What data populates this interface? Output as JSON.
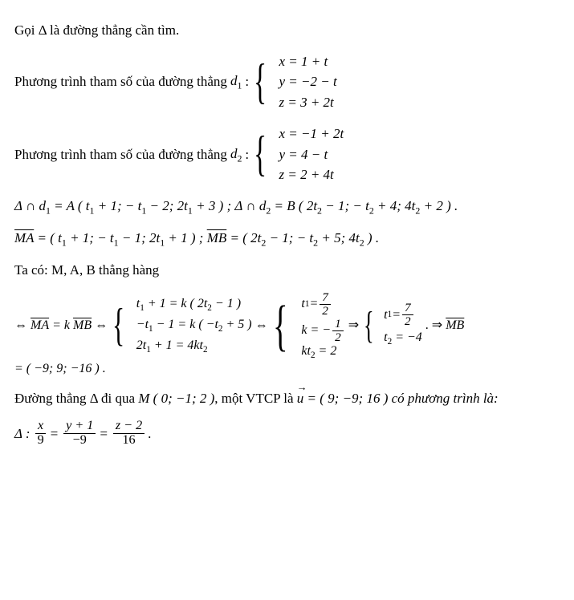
{
  "p": {
    "intro": "Gọi Δ là đường thẳng cần tìm.",
    "param_prefix": "Phương trình tham số của đường thẳng ",
    "d1": "d",
    "d1sub": "1",
    "colon": " : ",
    "d1_r1": "x = 1 + t",
    "d1_r2": "y = −2 − t",
    "d1_r3": "z = 3 + 2t",
    "d2": "d",
    "d2sub": "2",
    "d2_r1": "x = −1 + 2t",
    "d2_r2": "y = 4 − t",
    "d2_r3": "z = 2 + 4t",
    "i1": "Δ ∩ d",
    "i1b": " = A ( t",
    "i1c": " + 1;  − t",
    "i1d": " − 2;  2t",
    "i1e": " + 3 ) ;   Δ ∩ d",
    "i2b": " = B ( 2t",
    "i2c": " − 1;  − t",
    "i2d": " + 4;  4t",
    "i2e": " + 2 ) .",
    "ma_eq": " = ( t",
    "ma2": " + 1;  − t",
    "ma3": " − 1;  2t",
    "ma4": " + 1 ) ;   ",
    "mb_eq": " = ( 2t",
    "mb2": " − 1;  − t",
    "mb3": " + 5;  4t",
    "mb4": " ) .",
    "taco": "Ta có: M,  A,  B thẳng hàng",
    "dar": "⇔",
    "imp": "⇒",
    "ma_vec": "MA",
    "mb_vec": "MB",
    "eqk": " = k",
    "sysA_r1a": "t",
    "sysA_r1b": " + 1 = k ( 2t",
    "sysA_r1c": " − 1 )",
    "sysA_r2a": "−t",
    "sysA_r2b": " − 1 = k ( −t",
    "sysA_r2c": " + 5 )",
    "sysA_r3a": "2t",
    "sysA_r3b": " + 1 = 4kt",
    "sysB_r1a": "t",
    "sysB_r1_eq": " = ",
    "sysB_r1_num": "7",
    "sysB_r1_den": "2",
    "sysB_r2a": "k = − ",
    "sysB_r2_num": "1",
    "sysB_r2_den": "2",
    "sysB_r3a": "kt",
    "sysB_r3b": " = 2",
    "sysC_r1a": "t",
    "sysC_r1_eq": " = ",
    "sysC_r1_num": "7",
    "sysC_r1_den": "2",
    "sysC_r2a": "t",
    "sysC_r2b": " = −4",
    "mb_final": " = ( −9; 9; −16 ) .",
    "final1a": "Đường thẳng Δ đi qua ",
    "final1b": "M ( 0; −1; 2 )",
    "final1c": ", một VTCP là ",
    "uvec": "u",
    "final1d": " = ( 9; −9; 16 )  có phương trình là:",
    "delta": "Δ : ",
    "fr1n": "x",
    "fr1d": "9",
    "fr2n": "y + 1",
    "fr2d": "−9",
    "fr3n": "z − 2",
    "fr3d": "16",
    "eq": " = ",
    "dot": " .",
    "dotimp": " . ⇒ ",
    "s1": "1",
    "s2": "2"
  }
}
